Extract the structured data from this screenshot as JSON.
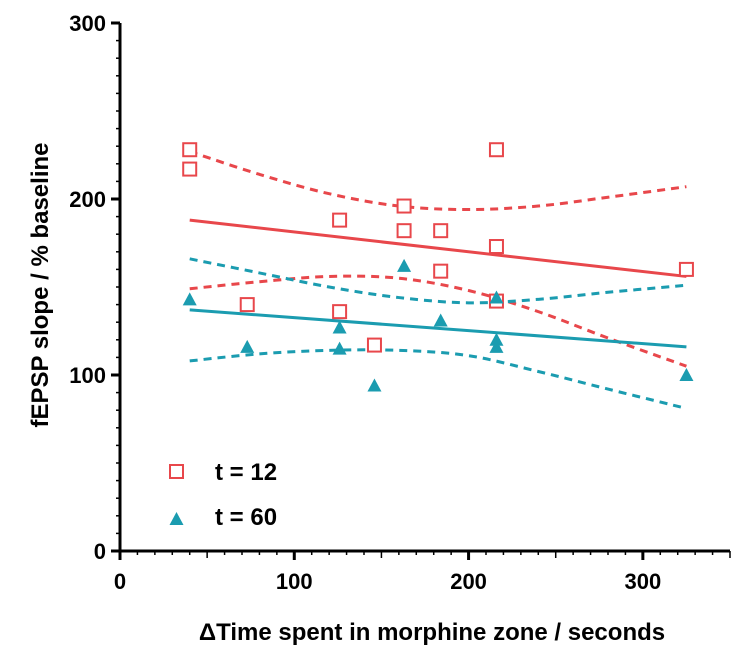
{
  "chart_data": {
    "type": "scatter",
    "xlabel": "ΔTime spent in morphine zone  / seconds",
    "ylabel": "fEPSP slope / % baseline",
    "xlim": [
      0,
      350
    ],
    "ylim": [
      0,
      300
    ],
    "x_ticks": [
      0,
      100,
      200,
      300
    ],
    "y_ticks": [
      0,
      100,
      200,
      300
    ],
    "x_tick_labels": [
      "0",
      "100",
      "200",
      "300"
    ],
    "y_tick_labels": [
      "0",
      "100",
      "200",
      "300"
    ],
    "legend_position": "bottom-left",
    "series": [
      {
        "name": "t = 12",
        "marker": "open-square",
        "color": "#e8474b",
        "points": [
          {
            "x": 40,
            "y": 228
          },
          {
            "x": 40,
            "y": 217
          },
          {
            "x": 73,
            "y": 140
          },
          {
            "x": 126,
            "y": 188
          },
          {
            "x": 126,
            "y": 136
          },
          {
            "x": 146,
            "y": 117
          },
          {
            "x": 163,
            "y": 196
          },
          {
            "x": 163,
            "y": 182
          },
          {
            "x": 184,
            "y": 182
          },
          {
            "x": 184,
            "y": 159
          },
          {
            "x": 216,
            "y": 228
          },
          {
            "x": 216,
            "y": 173
          },
          {
            "x": 216,
            "y": 142
          },
          {
            "x": 325,
            "y": 160
          }
        ],
        "fit": {
          "x": [
            40,
            325
          ],
          "y": [
            188,
            156
          ]
        },
        "ci_upper": {
          "x": [
            40,
            80,
            120,
            160,
            200,
            240,
            280,
            325
          ],
          "y": [
            227,
            214,
            203,
            196,
            194,
            196,
            201,
            207
          ]
        },
        "ci_lower": {
          "x": [
            40,
            80,
            120,
            160,
            200,
            240,
            280,
            325
          ],
          "y": [
            149,
            153,
            156,
            155,
            148,
            136,
            121,
            105
          ]
        }
      },
      {
        "name": "t = 60",
        "marker": "filled-triangle",
        "color": "#1b9cb0",
        "points": [
          {
            "x": 40,
            "y": 143
          },
          {
            "x": 73,
            "y": 116
          },
          {
            "x": 126,
            "y": 127
          },
          {
            "x": 126,
            "y": 115
          },
          {
            "x": 146,
            "y": 94
          },
          {
            "x": 163,
            "y": 162
          },
          {
            "x": 184,
            "y": 131
          },
          {
            "x": 216,
            "y": 144
          },
          {
            "x": 216,
            "y": 120
          },
          {
            "x": 216,
            "y": 116
          },
          {
            "x": 325,
            "y": 100
          }
        ],
        "fit": {
          "x": [
            40,
            325
          ],
          "y": [
            137,
            116
          ]
        },
        "ci_upper": {
          "x": [
            40,
            80,
            120,
            160,
            200,
            240,
            280,
            325
          ],
          "y": [
            166,
            158,
            150,
            144,
            141,
            143,
            147,
            151
          ]
        },
        "ci_lower": {
          "x": [
            40,
            80,
            120,
            160,
            200,
            240,
            280,
            325
          ],
          "y": [
            108,
            112,
            114,
            114,
            111,
            102,
            92,
            81
          ]
        }
      }
    ]
  }
}
